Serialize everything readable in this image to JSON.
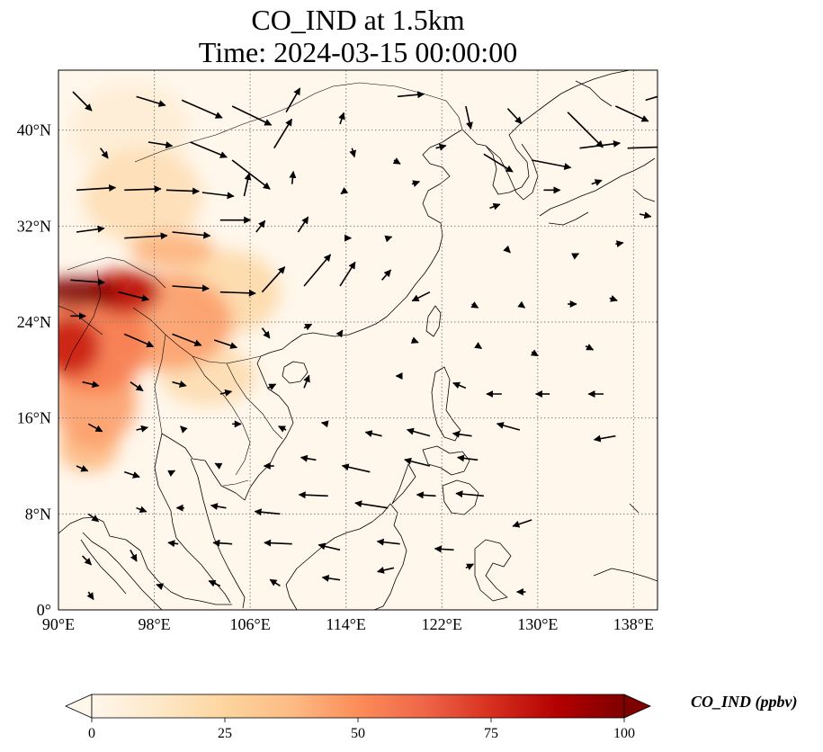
{
  "title": {
    "line1": "CO_IND at 1.5km",
    "line2": "Time: 2024-03-15 00:00:00"
  },
  "map": {
    "variable": "CO_IND",
    "level": "1.5km",
    "projection": "PlateCarree",
    "extent": {
      "lon_min": 90,
      "lon_max": 140,
      "lat_min": 0,
      "lat_max": 45
    },
    "gridlines": {
      "style": "dotted",
      "color": "#808080"
    },
    "x_ticks": [
      {
        "lon": 90,
        "label": "90°E"
      },
      {
        "lon": 98,
        "label": "98°E"
      },
      {
        "lon": 106,
        "label": "106°E"
      },
      {
        "lon": 114,
        "label": "114°E"
      },
      {
        "lon": 122,
        "label": "122°E"
      },
      {
        "lon": 130,
        "label": "130°E"
      },
      {
        "lon": 138,
        "label": "138°E"
      }
    ],
    "y_ticks": [
      {
        "lat": 0,
        "label": "0°"
      },
      {
        "lat": 8,
        "label": "8°N"
      },
      {
        "lat": 16,
        "label": "16°N"
      },
      {
        "lat": 24,
        "label": "24°N"
      },
      {
        "lat": 32,
        "label": "32°N"
      },
      {
        "lat": 40,
        "label": "40°N"
      }
    ],
    "plumes": [
      {
        "lon": 91.5,
        "lat": 26.5,
        "rlon": 3.5,
        "rlat": 1.2,
        "value": 100
      },
      {
        "lon": 95.5,
        "lat": 26.5,
        "rlon": 3.0,
        "rlat": 1.8,
        "value": 85
      },
      {
        "lon": 91,
        "lat": 22,
        "rlon": 2.5,
        "rlat": 2.5,
        "value": 80
      },
      {
        "lon": 93,
        "lat": 22.5,
        "rlon": 4.5,
        "rlat": 4.5,
        "value": 55
      },
      {
        "lon": 99,
        "lat": 24,
        "rlon": 5.5,
        "rlat": 4.0,
        "value": 45
      },
      {
        "lon": 99.5,
        "lat": 30,
        "rlon": 3.5,
        "rlat": 1.5,
        "value": 40
      },
      {
        "lon": 93,
        "lat": 17.5,
        "rlon": 3.5,
        "rlat": 4.0,
        "value": 45
      },
      {
        "lon": 92.5,
        "lat": 13.5,
        "rlon": 2.5,
        "rlat": 2.0,
        "value": 38
      },
      {
        "lon": 97,
        "lat": 34.5,
        "rlon": 5.0,
        "rlat": 4.0,
        "value": 18
      },
      {
        "lon": 104,
        "lat": 26.5,
        "rlon": 4.5,
        "rlat": 3.5,
        "value": 22
      },
      {
        "lon": 102.5,
        "lat": 19.5,
        "rlon": 4.0,
        "rlat": 2.5,
        "value": 20
      },
      {
        "lon": 96,
        "lat": 40,
        "rlon": 5.0,
        "rlat": 4.0,
        "value": 8
      }
    ],
    "wind_vectors": [
      {
        "lon": 91.2,
        "lat": 43.2,
        "u": 1.5,
        "v": -1.5
      },
      {
        "lon": 96.5,
        "lat": 42.8,
        "u": 2.3,
        "v": -0.7
      },
      {
        "lon": 100.3,
        "lat": 42.5,
        "u": 3.2,
        "v": -1.4
      },
      {
        "lon": 104.5,
        "lat": 42.0,
        "u": 3.1,
        "v": -1.5
      },
      {
        "lon": 109.0,
        "lat": 41.5,
        "u": 1.1,
        "v": 1.9
      },
      {
        "lon": 113.5,
        "lat": 40.5,
        "u": 0.3,
        "v": 0.9
      },
      {
        "lon": 118.3,
        "lat": 42.8,
        "u": 2.1,
        "v": 0.2
      },
      {
        "lon": 124.0,
        "lat": 42.0,
        "u": 0.4,
        "v": -1.8
      },
      {
        "lon": 127.5,
        "lat": 41.8,
        "u": 1.1,
        "v": -1.2
      },
      {
        "lon": 132.5,
        "lat": 41.5,
        "u": 2.8,
        "v": -2.8
      },
      {
        "lon": 136.5,
        "lat": 42.0,
        "u": 2.6,
        "v": -1.2
      },
      {
        "lon": 139.0,
        "lat": 42.5,
        "u": 2.7,
        "v": 0.8
      },
      {
        "lon": 93.5,
        "lat": 38.5,
        "u": 0.6,
        "v": -0.8
      },
      {
        "lon": 97.5,
        "lat": 39.0,
        "u": 1.9,
        "v": -0.3
      },
      {
        "lon": 101.0,
        "lat": 39.0,
        "u": 2.9,
        "v": -1.2
      },
      {
        "lon": 104.5,
        "lat": 37.5,
        "u": 3.0,
        "v": -2.3
      },
      {
        "lon": 108.0,
        "lat": 38.5,
        "u": 1.4,
        "v": 2.3
      },
      {
        "lon": 114.5,
        "lat": 38.5,
        "u": 0.2,
        "v": -0.7
      },
      {
        "lon": 118.0,
        "lat": 37.5,
        "u": 0.5,
        "v": -0.3
      },
      {
        "lon": 121.5,
        "lat": 38.5,
        "u": 0.8,
        "v": 0.2
      },
      {
        "lon": 125.5,
        "lat": 38.0,
        "u": 2.3,
        "v": -1.4
      },
      {
        "lon": 129.5,
        "lat": 37.5,
        "u": 3.1,
        "v": -0.6
      },
      {
        "lon": 133.5,
        "lat": 38.5,
        "u": 3.2,
        "v": 0.4
      },
      {
        "lon": 137.5,
        "lat": 38.5,
        "u": 2.9,
        "v": 0.1
      },
      {
        "lon": 91.5,
        "lat": 35.0,
        "u": 3.1,
        "v": 0.2
      },
      {
        "lon": 95.5,
        "lat": 35.0,
        "u": 2.9,
        "v": 0.1
      },
      {
        "lon": 99.0,
        "lat": 35.0,
        "u": 2.6,
        "v": -0.1
      },
      {
        "lon": 102.0,
        "lat": 34.8,
        "u": 2.5,
        "v": -0.3
      },
      {
        "lon": 105.5,
        "lat": 34.5,
        "u": 0.4,
        "v": 1.8
      },
      {
        "lon": 109.5,
        "lat": 35.5,
        "u": 0.1,
        "v": 1.0
      },
      {
        "lon": 114.0,
        "lat": 35.0,
        "u": -0.4,
        "v": -0.3
      },
      {
        "lon": 119.5,
        "lat": 35.5,
        "u": 0.6,
        "v": 0.2
      },
      {
        "lon": 126.0,
        "lat": 33.5,
        "u": 0.8,
        "v": 0.3
      },
      {
        "lon": 130.5,
        "lat": 35.0,
        "u": 1.3,
        "v": 0.0
      },
      {
        "lon": 134.5,
        "lat": 35.5,
        "u": 0.8,
        "v": 0.3
      },
      {
        "lon": 138.5,
        "lat": 33.0,
        "u": 0.9,
        "v": -0.2
      },
      {
        "lon": 91.5,
        "lat": 31.5,
        "u": 2.2,
        "v": 0.3
      },
      {
        "lon": 95.5,
        "lat": 31.0,
        "u": 3.4,
        "v": 0.2
      },
      {
        "lon": 99.5,
        "lat": 31.5,
        "u": 3.0,
        "v": -0.3
      },
      {
        "lon": 103.5,
        "lat": 32.5,
        "u": 2.4,
        "v": 0.0
      },
      {
        "lon": 106.5,
        "lat": 31.5,
        "u": 0.7,
        "v": 0.9
      },
      {
        "lon": 110.0,
        "lat": 31.5,
        "u": 0.8,
        "v": 1.2
      },
      {
        "lon": 114.0,
        "lat": 31.0,
        "u": 0.4,
        "v": 0.0
      },
      {
        "lon": 117.5,
        "lat": 31.0,
        "u": 0.3,
        "v": 0.1
      },
      {
        "lon": 127.5,
        "lat": 30.0,
        "u": 0.2,
        "v": -0.2
      },
      {
        "lon": 133.0,
        "lat": 29.5,
        "u": 0.4,
        "v": 0.2
      },
      {
        "lon": 136.5,
        "lat": 30.5,
        "u": 0.6,
        "v": 0.1
      },
      {
        "lon": 91.0,
        "lat": 27.5,
        "u": 2.7,
        "v": -0.2
      },
      {
        "lon": 95.0,
        "lat": 26.5,
        "u": 2.4,
        "v": -0.6
      },
      {
        "lon": 99.5,
        "lat": 27.0,
        "u": 2.9,
        "v": -0.2
      },
      {
        "lon": 103.5,
        "lat": 26.5,
        "u": 2.8,
        "v": -0.1
      },
      {
        "lon": 107.0,
        "lat": 26.5,
        "u": 1.8,
        "v": 2.0
      },
      {
        "lon": 110.5,
        "lat": 27.0,
        "u": 2.1,
        "v": 2.5
      },
      {
        "lon": 113.5,
        "lat": 27.0,
        "u": 1.2,
        "v": 1.9
      },
      {
        "lon": 117.0,
        "lat": 27.5,
        "u": 0.7,
        "v": 0.8
      },
      {
        "lon": 121.0,
        "lat": 26.5,
        "u": -1.4,
        "v": -0.7
      },
      {
        "lon": 124.5,
        "lat": 25.5,
        "u": 0.5,
        "v": -0.3
      },
      {
        "lon": 128.5,
        "lat": 25.5,
        "u": 0.4,
        "v": -0.3
      },
      {
        "lon": 132.5,
        "lat": 25.5,
        "u": 0.7,
        "v": 0.0
      },
      {
        "lon": 136.0,
        "lat": 26.0,
        "u": 0.6,
        "v": -0.2
      },
      {
        "lon": 91.0,
        "lat": 24.5,
        "u": 1.2,
        "v": 0.0
      },
      {
        "lon": 95.5,
        "lat": 23.0,
        "u": 2.3,
        "v": -1.0
      },
      {
        "lon": 99.5,
        "lat": 23.0,
        "u": 2.3,
        "v": -0.9
      },
      {
        "lon": 103.0,
        "lat": 22.5,
        "u": 1.8,
        "v": -0.6
      },
      {
        "lon": 107.0,
        "lat": 23.5,
        "u": 0.6,
        "v": -0.8
      },
      {
        "lon": 110.5,
        "lat": 23.5,
        "u": 0.6,
        "v": 0.3
      },
      {
        "lon": 113.5,
        "lat": 23.0,
        "u": 0.2,
        "v": 0.3
      },
      {
        "lon": 119.5,
        "lat": 22.5,
        "u": 0.5,
        "v": -0.2
      },
      {
        "lon": 125.0,
        "lat": 22.0,
        "u": 0.3,
        "v": -0.2
      },
      {
        "lon": 129.5,
        "lat": 21.5,
        "u": 0.5,
        "v": -0.3
      },
      {
        "lon": 134.0,
        "lat": 22.0,
        "u": 0.6,
        "v": -0.3
      },
      {
        "lon": 92.0,
        "lat": 19.0,
        "u": 1.3,
        "v": -0.3
      },
      {
        "lon": 96.0,
        "lat": 19.0,
        "u": 1.0,
        "v": -0.7
      },
      {
        "lon": 99.5,
        "lat": 19.0,
        "u": 1.1,
        "v": -0.3
      },
      {
        "lon": 103.5,
        "lat": 18.0,
        "u": 0.9,
        "v": 0.2
      },
      {
        "lon": 107.5,
        "lat": 18.5,
        "u": 0.6,
        "v": 0.3
      },
      {
        "lon": 110.5,
        "lat": 18.5,
        "u": 0.4,
        "v": 1.0
      },
      {
        "lon": 118.5,
        "lat": 19.5,
        "u": -0.3,
        "v": 0.0
      },
      {
        "lon": 124.0,
        "lat": 18.5,
        "u": -1.0,
        "v": 0.4
      },
      {
        "lon": 127.0,
        "lat": 18.0,
        "u": -1.2,
        "v": 0.0
      },
      {
        "lon": 131.0,
        "lat": 18.0,
        "u": -1.1,
        "v": 0.0
      },
      {
        "lon": 135.5,
        "lat": 18.0,
        "u": -1.2,
        "v": 0.0
      },
      {
        "lon": 92.5,
        "lat": 15.5,
        "u": 1.1,
        "v": -0.6
      },
      {
        "lon": 96.5,
        "lat": 15.0,
        "u": 0.9,
        "v": 0.2
      },
      {
        "lon": 100.5,
        "lat": 15.0,
        "u": -0.3,
        "v": 0.3
      },
      {
        "lon": 104.5,
        "lat": 15.5,
        "u": 0.7,
        "v": 0.0
      },
      {
        "lon": 109.0,
        "lat": 15.0,
        "u": -0.6,
        "v": 0.3
      },
      {
        "lon": 112.5,
        "lat": 15.5,
        "u": -0.5,
        "v": 0.1
      },
      {
        "lon": 117.0,
        "lat": 14.5,
        "u": -1.3,
        "v": 0.3
      },
      {
        "lon": 121.0,
        "lat": 14.5,
        "u": -1.8,
        "v": 0.5
      },
      {
        "lon": 124.5,
        "lat": 14.5,
        "u": -1.5,
        "v": 0.2
      },
      {
        "lon": 128.5,
        "lat": 15.0,
        "u": -1.8,
        "v": 0.5
      },
      {
        "lon": 136.5,
        "lat": 14.5,
        "u": -1.7,
        "v": -0.3
      },
      {
        "lon": 91.5,
        "lat": 12.0,
        "u": 0.9,
        "v": -0.4
      },
      {
        "lon": 95.5,
        "lat": 11.5,
        "u": 1.2,
        "v": -0.4
      },
      {
        "lon": 99.5,
        "lat": 11.5,
        "u": 0.2,
        "v": 0.1
      },
      {
        "lon": 103.5,
        "lat": 12.0,
        "u": -0.4,
        "v": 0.2
      },
      {
        "lon": 108.0,
        "lat": 12.0,
        "u": -0.8,
        "v": 0.0
      },
      {
        "lon": 111.5,
        "lat": 12.5,
        "u": -1.2,
        "v": 0.2
      },
      {
        "lon": 116.0,
        "lat": 11.5,
        "u": -2.2,
        "v": 0.5
      },
      {
        "lon": 121.0,
        "lat": 12.0,
        "u": -2.0,
        "v": 0.5
      },
      {
        "lon": 125.0,
        "lat": 12.5,
        "u": -1.6,
        "v": 0.2
      },
      {
        "lon": 92.5,
        "lat": 8.0,
        "u": 0.8,
        "v": -0.6
      },
      {
        "lon": 96.5,
        "lat": 8.5,
        "u": 0.8,
        "v": -0.3
      },
      {
        "lon": 100.5,
        "lat": 8.5,
        "u": -0.6,
        "v": 0.0
      },
      {
        "lon": 104.0,
        "lat": 8.5,
        "u": -1.2,
        "v": 0.2
      },
      {
        "lon": 108.5,
        "lat": 8.0,
        "u": -2.0,
        "v": 0.2
      },
      {
        "lon": 112.5,
        "lat": 9.5,
        "u": -2.3,
        "v": 0.1
      },
      {
        "lon": 117.5,
        "lat": 8.5,
        "u": -2.6,
        "v": 0.4
      },
      {
        "lon": 121.5,
        "lat": 9.5,
        "u": -1.5,
        "v": 0.1
      },
      {
        "lon": 125.5,
        "lat": 9.5,
        "u": -2.2,
        "v": 0.2
      },
      {
        "lon": 129.5,
        "lat": 7.5,
        "u": -1.5,
        "v": -0.5
      },
      {
        "lon": 92.0,
        "lat": 4.5,
        "u": 0.7,
        "v": -0.7
      },
      {
        "lon": 96.0,
        "lat": 5.0,
        "u": 0.5,
        "v": -0.9
      },
      {
        "lon": 100.0,
        "lat": 5.5,
        "u": -0.8,
        "v": 0.1
      },
      {
        "lon": 104.5,
        "lat": 5.5,
        "u": -1.5,
        "v": 0.1
      },
      {
        "lon": 109.5,
        "lat": 5.5,
        "u": -2.2,
        "v": 0.1
      },
      {
        "lon": 113.5,
        "lat": 5.0,
        "u": -1.7,
        "v": 0.4
      },
      {
        "lon": 118.5,
        "lat": 5.5,
        "u": -1.8,
        "v": 0.2
      },
      {
        "lon": 123.0,
        "lat": 5.0,
        "u": -1.5,
        "v": 0.1
      },
      {
        "lon": 92.5,
        "lat": 1.5,
        "u": 0.4,
        "v": -0.6
      },
      {
        "lon": 98.5,
        "lat": 2.0,
        "u": -0.3,
        "v": 0.1
      },
      {
        "lon": 103.5,
        "lat": 2.0,
        "u": -0.9,
        "v": 0.4
      },
      {
        "lon": 108.5,
        "lat": 2.0,
        "u": -0.8,
        "v": 0.5
      },
      {
        "lon": 113.5,
        "lat": 2.5,
        "u": -1.4,
        "v": 0.2
      },
      {
        "lon": 118.0,
        "lat": 3.5,
        "u": -1.3,
        "v": -0.3
      },
      {
        "lon": 124.0,
        "lat": 3.5,
        "u": 0.6,
        "v": 0.3
      },
      {
        "lon": 129.0,
        "lat": 1.5,
        "u": -0.7,
        "v": 0.0
      }
    ]
  },
  "colorbar": {
    "label": "CO_IND (ppbv)",
    "min": 0,
    "max": 100,
    "extend": "both",
    "colormap": "OrRd",
    "colormap_stops": [
      "#fff7ec",
      "#fee8c8",
      "#fdd49e",
      "#fdbb84",
      "#fc8d59",
      "#ef6548",
      "#d7301f",
      "#b30000",
      "#7f0000"
    ],
    "ticks": [
      {
        "value": 0,
        "label": "0"
      },
      {
        "value": 25,
        "label": "25"
      },
      {
        "value": 50,
        "label": "50"
      },
      {
        "value": 75,
        "label": "75"
      },
      {
        "value": 100,
        "label": "100"
      }
    ]
  },
  "colors": {
    "land_coast": "#000000",
    "background_low": "#fff7ec",
    "arrow": "#000000",
    "grid": "#808080"
  }
}
